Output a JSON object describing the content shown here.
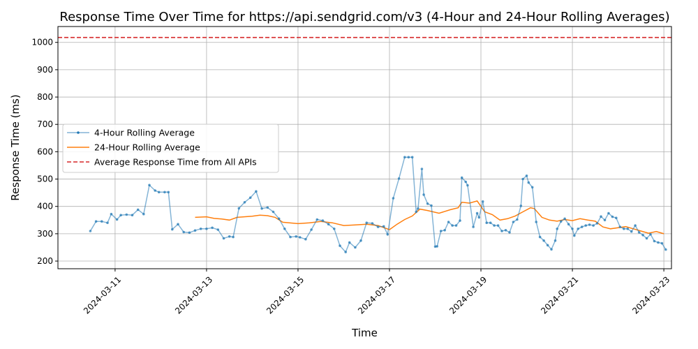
{
  "chart_data": {
    "type": "line",
    "title": "Response Time Over Time for https://api.sendgrid.com/v3 (4-Hour and 24-Hour Rolling Averages)",
    "xlabel": "Time",
    "ylabel": "Response Time (ms)",
    "x_ticks": [
      "2024-03-11",
      "2024-03-13",
      "2024-03-15",
      "2024-03-17",
      "2024-03-19",
      "2024-03-21",
      "2024-03-23"
    ],
    "y_ticks": [
      200,
      300,
      400,
      500,
      600,
      700,
      800,
      900,
      1000
    ],
    "ylim": [
      172,
      1058
    ],
    "xlim": [
      "2024-03-09T18:00",
      "2024-03-23T04:00"
    ],
    "grid": true,
    "legend_position": "center-left",
    "colors": {
      "four_hour": "#1f77b4",
      "twenty_four_hour": "#ff7f0e",
      "reference": "#d62728",
      "grid": "#b0b0b0"
    },
    "series": [
      {
        "name": "4-Hour Rolling Average",
        "style": "line-with-markers",
        "points": [
          [
            "2024-03-10T11:00",
            310
          ],
          [
            "2024-03-10T14:00",
            345
          ],
          [
            "2024-03-10T17:00",
            345
          ],
          [
            "2024-03-10T20:00",
            340
          ],
          [
            "2024-03-10T22:00",
            372
          ],
          [
            "2024-03-11T01:00",
            352
          ],
          [
            "2024-03-11T03:00",
            368
          ],
          [
            "2024-03-11T06:00",
            370
          ],
          [
            "2024-03-11T09:00",
            368
          ],
          [
            "2024-03-11T12:00",
            388
          ],
          [
            "2024-03-11T15:00",
            372
          ],
          [
            "2024-03-11T18:00",
            478
          ],
          [
            "2024-03-11T21:00",
            458
          ],
          [
            "2024-03-11T23:00",
            452
          ],
          [
            "2024-03-12T02:00",
            452
          ],
          [
            "2024-03-12T04:00",
            452
          ],
          [
            "2024-03-12T06:00",
            316
          ],
          [
            "2024-03-12T09:00",
            335
          ],
          [
            "2024-03-12T12:00",
            306
          ],
          [
            "2024-03-12T15:00",
            304
          ],
          [
            "2024-03-12T18:00",
            312
          ],
          [
            "2024-03-12T21:00",
            318
          ],
          [
            "2024-03-13T00:00",
            318
          ],
          [
            "2024-03-13T03:00",
            322
          ],
          [
            "2024-03-13T06:00",
            315
          ],
          [
            "2024-03-13T09:00",
            283
          ],
          [
            "2024-03-13T12:00",
            290
          ],
          [
            "2024-03-13T14:00",
            288
          ],
          [
            "2024-03-13T17:00",
            393
          ],
          [
            "2024-03-13T20:00",
            415
          ],
          [
            "2024-03-13T23:00",
            432
          ],
          [
            "2024-03-14T02:00",
            455
          ],
          [
            "2024-03-14T05:00",
            392
          ],
          [
            "2024-03-14T08:00",
            396
          ],
          [
            "2024-03-14T11:00",
            380
          ],
          [
            "2024-03-14T14:00",
            355
          ],
          [
            "2024-03-14T17:00",
            318
          ],
          [
            "2024-03-14T20:00",
            288
          ],
          [
            "2024-03-14T23:00",
            290
          ],
          [
            "2024-03-15T01:00",
            287
          ],
          [
            "2024-03-15T04:00",
            280
          ],
          [
            "2024-03-15T07:00",
            315
          ],
          [
            "2024-03-15T10:00",
            352
          ],
          [
            "2024-03-15T13:00",
            348
          ],
          [
            "2024-03-15T16:00",
            335
          ],
          [
            "2024-03-15T19:00",
            318
          ],
          [
            "2024-03-15T22:00",
            256
          ],
          [
            "2024-03-16T01:00",
            233
          ],
          [
            "2024-03-16T03:00",
            268
          ],
          [
            "2024-03-16T06:00",
            250
          ],
          [
            "2024-03-16T09:00",
            275
          ],
          [
            "2024-03-16T12:00",
            340
          ],
          [
            "2024-03-16T15:00",
            338
          ],
          [
            "2024-03-16T18:00",
            325
          ],
          [
            "2024-03-16T21:00",
            327
          ],
          [
            "2024-03-16T23:00",
            298
          ],
          [
            "2024-03-17T02:00",
            430
          ],
          [
            "2024-03-17T05:00",
            502
          ],
          [
            "2024-03-17T08:00",
            580
          ],
          [
            "2024-03-17T10:00",
            580
          ],
          [
            "2024-03-17T12:00",
            580
          ],
          [
            "2024-03-17T14:00",
            380
          ],
          [
            "2024-03-17T15:00",
            392
          ],
          [
            "2024-03-17T17:00",
            537
          ],
          [
            "2024-03-17T18:00",
            443
          ],
          [
            "2024-03-17T20:00",
            410
          ],
          [
            "2024-03-17T22:00",
            403
          ],
          [
            "2024-03-18T00:00",
            253
          ],
          [
            "2024-03-18T01:00",
            254
          ],
          [
            "2024-03-18T03:00",
            310
          ],
          [
            "2024-03-18T05:00",
            313
          ],
          [
            "2024-03-18T07:00",
            343
          ],
          [
            "2024-03-18T09:00",
            330
          ],
          [
            "2024-03-18T11:00",
            330
          ],
          [
            "2024-03-18T13:00",
            348
          ],
          [
            "2024-03-18T14:00",
            505
          ],
          [
            "2024-03-18T16:00",
            490
          ],
          [
            "2024-03-18T17:00",
            477
          ],
          [
            "2024-03-18T20:00",
            325
          ],
          [
            "2024-03-18T22:00",
            375
          ],
          [
            "2024-03-18T23:00",
            360
          ],
          [
            "2024-03-19T01:00",
            418
          ],
          [
            "2024-03-19T03:00",
            340
          ],
          [
            "2024-03-19T05:00",
            340
          ],
          [
            "2024-03-19T07:00",
            330
          ],
          [
            "2024-03-19T09:00",
            330
          ],
          [
            "2024-03-19T11:00",
            310
          ],
          [
            "2024-03-19T13:00",
            313
          ],
          [
            "2024-03-19T15:00",
            305
          ],
          [
            "2024-03-19T17:00",
            343
          ],
          [
            "2024-03-19T19:00",
            352
          ],
          [
            "2024-03-19T21:00",
            402
          ],
          [
            "2024-03-19T22:00",
            500
          ],
          [
            "2024-03-20T00:00",
            512
          ],
          [
            "2024-03-20T01:00",
            487
          ],
          [
            "2024-03-20T03:00",
            470
          ],
          [
            "2024-03-20T05:00",
            343
          ],
          [
            "2024-03-20T07:00",
            288
          ],
          [
            "2024-03-20T09:00",
            275
          ],
          [
            "2024-03-20T11:00",
            258
          ],
          [
            "2024-03-20T13:00",
            243
          ],
          [
            "2024-03-20T15:00",
            275
          ],
          [
            "2024-03-20T16:00",
            318
          ],
          [
            "2024-03-20T18:00",
            345
          ],
          [
            "2024-03-20T20:00",
            355
          ],
          [
            "2024-03-20T22:00",
            335
          ],
          [
            "2024-03-21T00:00",
            318
          ],
          [
            "2024-03-21T01:00",
            293
          ],
          [
            "2024-03-21T03:00",
            318
          ],
          [
            "2024-03-21T05:00",
            325
          ],
          [
            "2024-03-21T07:00",
            330
          ],
          [
            "2024-03-21T09:00",
            333
          ],
          [
            "2024-03-21T11:00",
            330
          ],
          [
            "2024-03-21T13:00",
            338
          ],
          [
            "2024-03-21T15:00",
            363
          ],
          [
            "2024-03-21T17:00",
            350
          ],
          [
            "2024-03-21T19:00",
            375
          ],
          [
            "2024-03-21T21:00",
            362
          ],
          [
            "2024-03-21T23:00",
            358
          ],
          [
            "2024-03-22T01:00",
            325
          ],
          [
            "2024-03-22T03:00",
            318
          ],
          [
            "2024-03-22T05:00",
            318
          ],
          [
            "2024-03-22T07:00",
            308
          ],
          [
            "2024-03-22T09:00",
            330
          ],
          [
            "2024-03-22T11:00",
            305
          ],
          [
            "2024-03-22T13:00",
            295
          ],
          [
            "2024-03-22T15:00",
            283
          ],
          [
            "2024-03-22T17:00",
            298
          ],
          [
            "2024-03-22T19:00",
            273
          ],
          [
            "2024-03-22T21:00",
            268
          ],
          [
            "2024-03-22T23:00",
            265
          ],
          [
            "2024-03-23T01:00",
            242
          ]
        ]
      },
      {
        "name": "24-Hour Rolling Average",
        "style": "line",
        "points": [
          [
            "2024-03-12T18:00",
            360
          ],
          [
            "2024-03-13T00:00",
            362
          ],
          [
            "2024-03-13T04:00",
            356
          ],
          [
            "2024-03-13T08:00",
            354
          ],
          [
            "2024-03-13T12:00",
            350
          ],
          [
            "2024-03-13T16:00",
            360
          ],
          [
            "2024-03-14T00:00",
            364
          ],
          [
            "2024-03-14T04:00",
            368
          ],
          [
            "2024-03-14T08:00",
            366
          ],
          [
            "2024-03-14T12:00",
            360
          ],
          [
            "2024-03-14T16:00",
            342
          ],
          [
            "2024-03-15T00:00",
            337
          ],
          [
            "2024-03-15T06:00",
            340
          ],
          [
            "2024-03-15T12:00",
            345
          ],
          [
            "2024-03-15T18:00",
            340
          ],
          [
            "2024-03-16T00:00",
            330
          ],
          [
            "2024-03-16T06:00",
            332
          ],
          [
            "2024-03-16T12:00",
            335
          ],
          [
            "2024-03-16T18:00",
            330
          ],
          [
            "2024-03-17T00:00",
            315
          ],
          [
            "2024-03-17T04:00",
            335
          ],
          [
            "2024-03-17T08:00",
            352
          ],
          [
            "2024-03-17T12:00",
            365
          ],
          [
            "2024-03-17T16:00",
            390
          ],
          [
            "2024-03-17T20:00",
            385
          ],
          [
            "2024-03-18T02:00",
            375
          ],
          [
            "2024-03-18T08:00",
            388
          ],
          [
            "2024-03-18T12:00",
            395
          ],
          [
            "2024-03-18T14:00",
            415
          ],
          [
            "2024-03-18T18:00",
            412
          ],
          [
            "2024-03-18T22:00",
            420
          ],
          [
            "2024-03-19T02:00",
            380
          ],
          [
            "2024-03-19T06:00",
            370
          ],
          [
            "2024-03-19T10:00",
            350
          ],
          [
            "2024-03-19T14:00",
            355
          ],
          [
            "2024-03-19T18:00",
            365
          ],
          [
            "2024-03-19T22:00",
            380
          ],
          [
            "2024-03-20T02:00",
            395
          ],
          [
            "2024-03-20T04:00",
            392
          ],
          [
            "2024-03-20T08:00",
            360
          ],
          [
            "2024-03-20T12:00",
            350
          ],
          [
            "2024-03-20T16:00",
            346
          ],
          [
            "2024-03-20T20:00",
            352
          ],
          [
            "2024-03-21T00:00",
            348
          ],
          [
            "2024-03-21T04:00",
            355
          ],
          [
            "2024-03-21T08:00",
            350
          ],
          [
            "2024-03-21T12:00",
            346
          ],
          [
            "2024-03-21T16:00",
            325
          ],
          [
            "2024-03-21T20:00",
            318
          ],
          [
            "2024-03-22T00:00",
            322
          ],
          [
            "2024-03-22T04:00",
            326
          ],
          [
            "2024-03-22T08:00",
            318
          ],
          [
            "2024-03-22T12:00",
            310
          ],
          [
            "2024-03-22T16:00",
            302
          ],
          [
            "2024-03-22T20:00",
            308
          ],
          [
            "2024-03-23T00:00",
            300
          ]
        ]
      },
      {
        "name": "Average Response Time from All APIs",
        "style": "dashed-hline",
        "value": 1018
      }
    ]
  }
}
